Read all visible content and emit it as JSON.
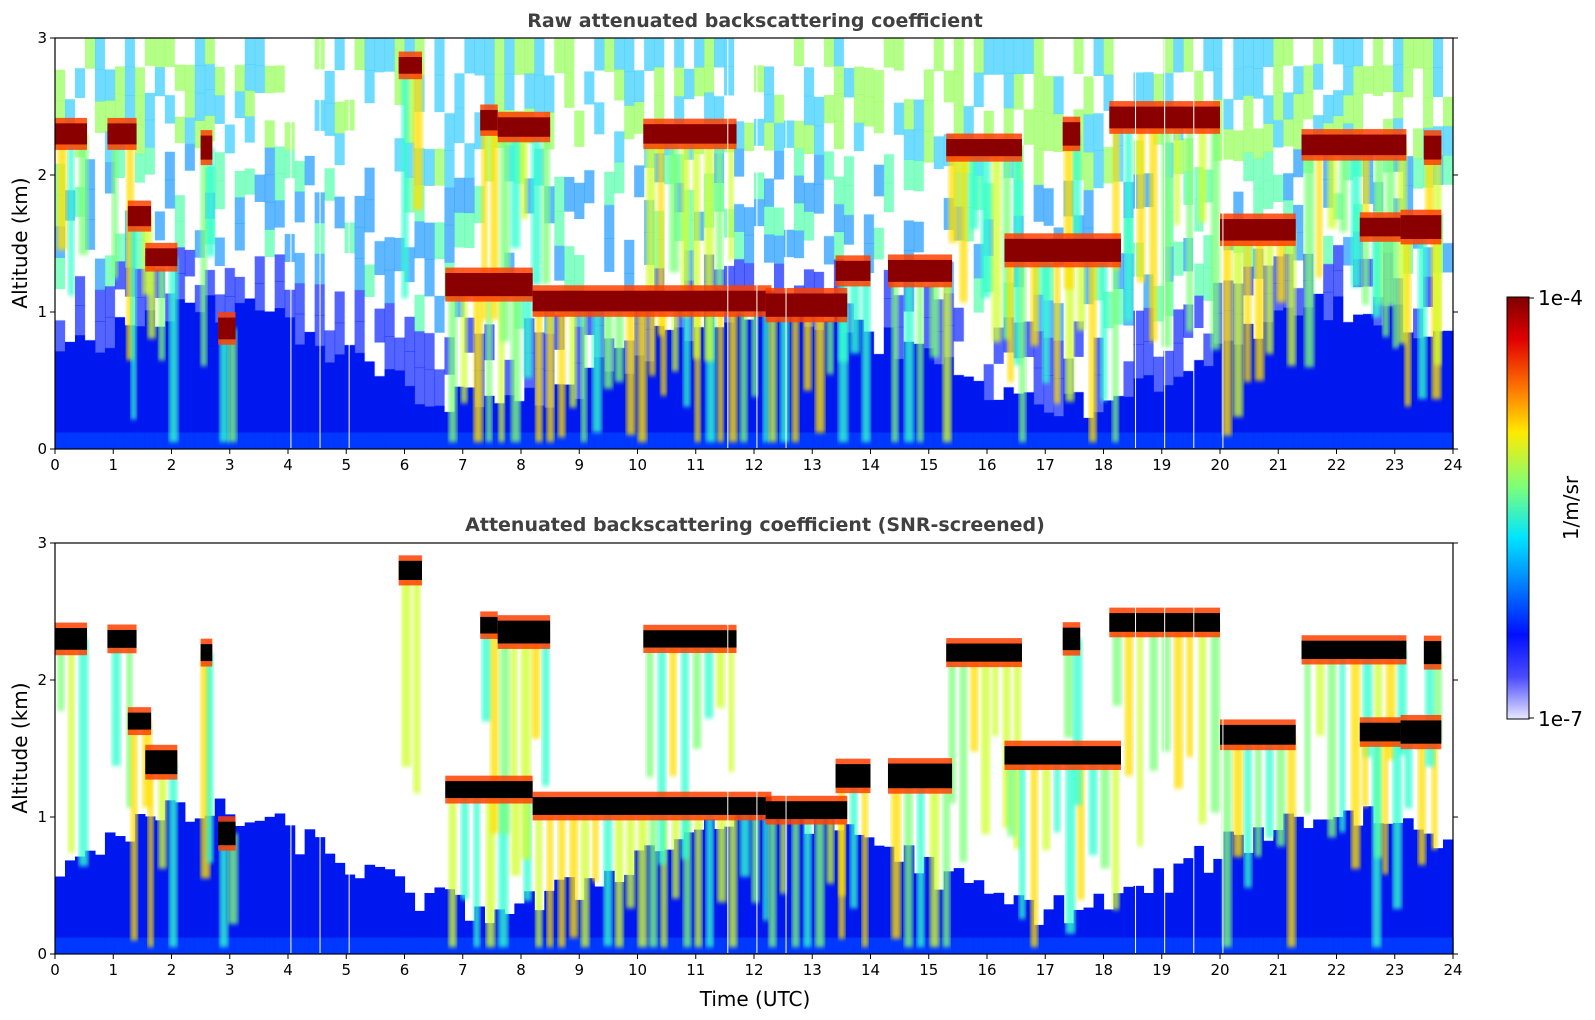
{
  "chart_data": [
    {
      "type": "heatmap",
      "title": "Raw attenuated backscattering coefficient",
      "xlabel": "",
      "ylabel": "Altitude (km)",
      "xlim": [
        0,
        24
      ],
      "ylim": [
        0,
        3
      ],
      "xticks": [
        "0",
        "1",
        "2",
        "3",
        "4",
        "5",
        "6",
        "7",
        "8",
        "9",
        "10",
        "11",
        "12",
        "13",
        "14",
        "15",
        "16",
        "17",
        "18",
        "19",
        "20",
        "21",
        "22",
        "23",
        "24"
      ],
      "yticks": [
        "0",
        "1",
        "2",
        "3"
      ],
      "screened": false,
      "colormap": "jet",
      "cloud_layers": [
        {
          "t0": 0.0,
          "t1": 0.55,
          "alt": 2.3
        },
        {
          "t0": 0.9,
          "t1": 1.4,
          "alt": 2.3
        },
        {
          "t0": 1.25,
          "t1": 1.65,
          "alt": 1.7
        },
        {
          "t0": 1.55,
          "t1": 2.1,
          "alt": 1.4
        },
        {
          "t0": 2.5,
          "t1": 2.7,
          "alt": 2.2
        },
        {
          "t0": 2.8,
          "t1": 3.1,
          "alt": 0.88
        },
        {
          "t0": 5.9,
          "t1": 6.3,
          "alt": 2.8
        },
        {
          "t0": 6.7,
          "t1": 8.2,
          "alt": 1.2
        },
        {
          "t0": 7.3,
          "t1": 7.6,
          "alt": 2.4
        },
        {
          "t0": 7.6,
          "t1": 8.5,
          "alt": 2.35
        },
        {
          "t0": 8.2,
          "t1": 12.3,
          "alt": 1.08
        },
        {
          "t0": 10.1,
          "t1": 11.7,
          "alt": 2.3
        },
        {
          "t0": 12.2,
          "t1": 13.6,
          "alt": 1.05
        },
        {
          "t0": 13.4,
          "t1": 14.0,
          "alt": 1.3
        },
        {
          "t0": 14.3,
          "t1": 15.4,
          "alt": 1.3
        },
        {
          "t0": 15.3,
          "t1": 16.6,
          "alt": 2.2
        },
        {
          "t0": 16.3,
          "t1": 18.3,
          "alt": 1.45
        },
        {
          "t0": 17.3,
          "t1": 17.6,
          "alt": 2.3
        },
        {
          "t0": 18.1,
          "t1": 20.0,
          "alt": 2.42
        },
        {
          "t0": 20.0,
          "t1": 21.3,
          "alt": 1.6
        },
        {
          "t0": 21.4,
          "t1": 23.2,
          "alt": 2.22
        },
        {
          "t0": 22.4,
          "t1": 23.1,
          "alt": 1.62
        },
        {
          "t0": 23.1,
          "t1": 23.8,
          "alt": 1.62
        },
        {
          "t0": 23.5,
          "t1": 23.8,
          "alt": 2.2
        }
      ]
    },
    {
      "type": "heatmap",
      "title": "Attenuated backscattering coefficient (SNR-screened)",
      "xlabel": "Time (UTC)",
      "ylabel": "Altitude (km)",
      "xlim": [
        0,
        24
      ],
      "ylim": [
        0,
        3
      ],
      "xticks": [
        "0",
        "1",
        "2",
        "3",
        "4",
        "5",
        "6",
        "7",
        "8",
        "9",
        "10",
        "11",
        "12",
        "13",
        "14",
        "15",
        "16",
        "17",
        "18",
        "19",
        "20",
        "21",
        "22",
        "23",
        "24"
      ],
      "yticks": [
        "0",
        "1",
        "2",
        "3"
      ],
      "screened": true,
      "colormap": "jet",
      "cloud_layers": "same as raw panel (opaque cores shown in black)"
    }
  ],
  "colorbar": {
    "max_label": "1e-4",
    "min_label": "1e-7",
    "unit_label": "1/m/sr",
    "scale": "log",
    "colors": [
      "#7f0000",
      "#ff0000",
      "#ff7f00",
      "#ffff00",
      "#7fff7f",
      "#00ffff",
      "#007fff",
      "#0000ff",
      "#00007f",
      "#c8c8ff"
    ]
  }
}
